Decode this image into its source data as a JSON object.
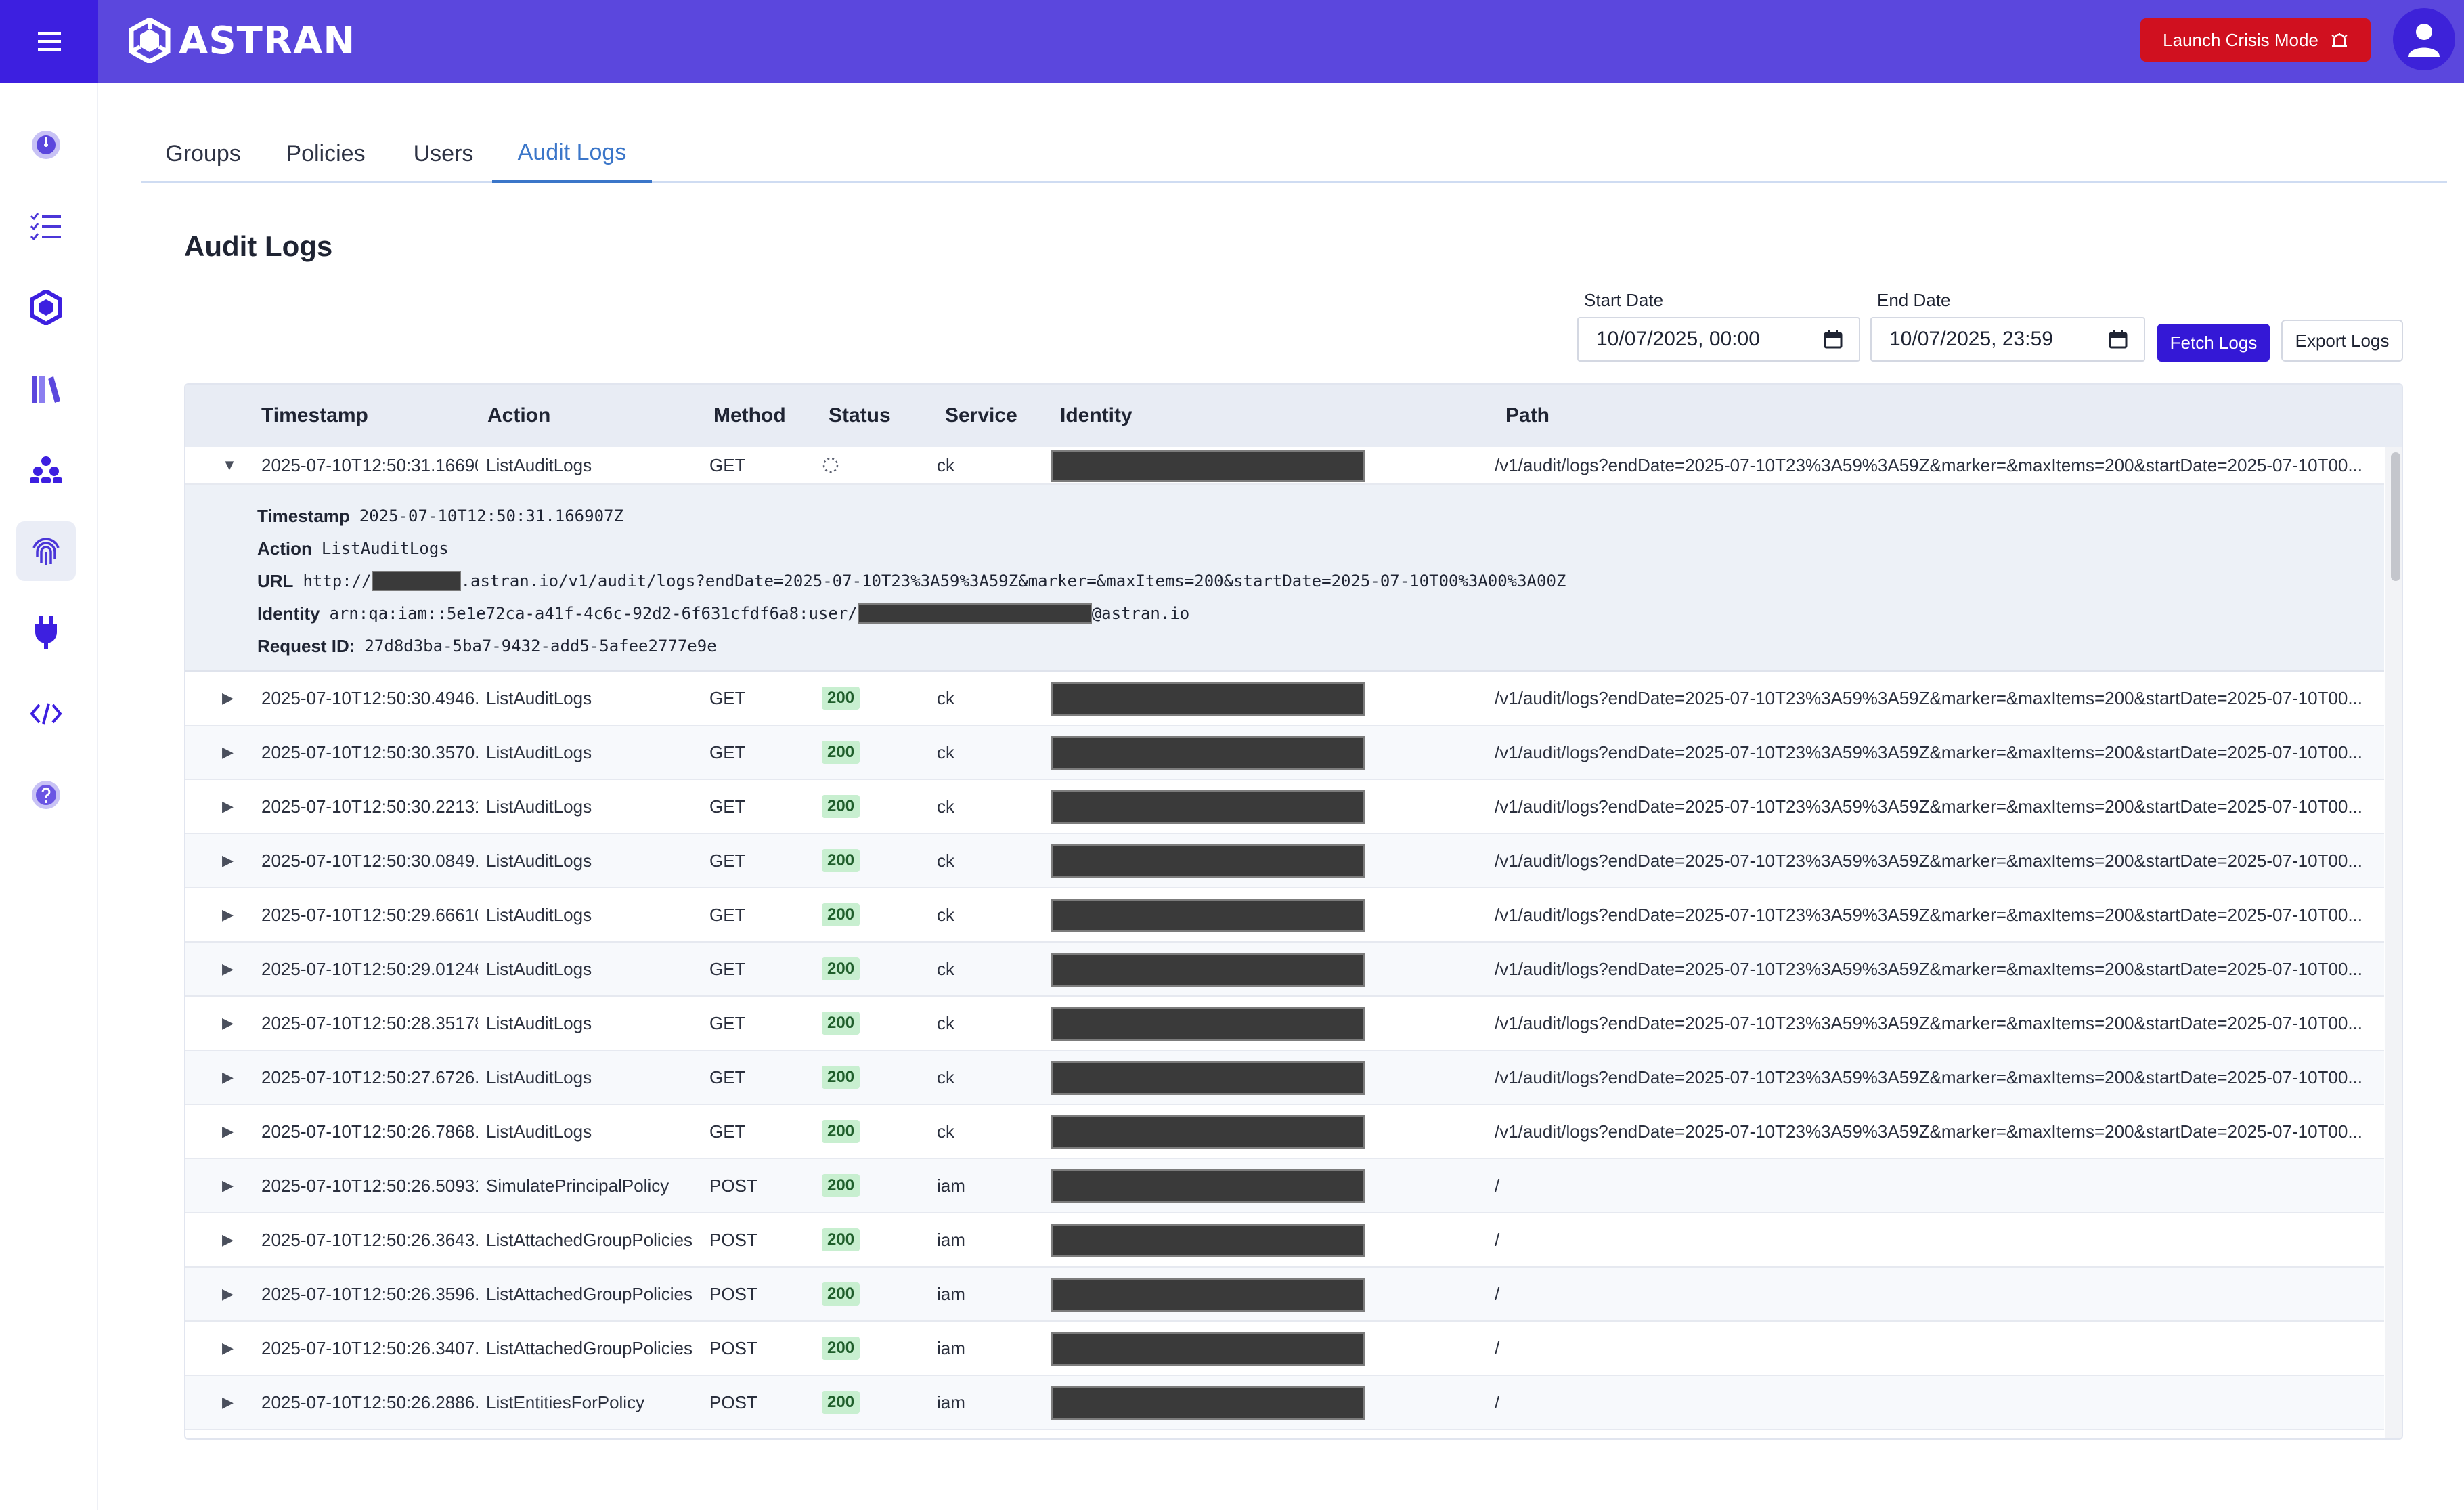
{
  "app": {
    "logo_text": "ASTRAN",
    "crisis_button": "Launch Crisis Mode"
  },
  "sidebar": {
    "items": [
      {
        "icon": "dashboard-gauge-icon"
      },
      {
        "icon": "checklist-icon"
      },
      {
        "icon": "hexagon-network-icon"
      },
      {
        "icon": "library-books-icon"
      },
      {
        "icon": "org-hierarchy-icon"
      },
      {
        "icon": "fingerprint-icon",
        "active": true
      },
      {
        "icon": "plug-icon"
      },
      {
        "icon": "code-icon"
      },
      {
        "icon": "help-icon"
      }
    ]
  },
  "tabs": [
    "Groups",
    "Policies",
    "Users",
    "Audit Logs"
  ],
  "active_tab": "Audit Logs",
  "page_title": "Audit Logs",
  "filters": {
    "start_label": "Start Date",
    "start_value": "10/07/2025, 00:00",
    "end_label": "End Date",
    "end_value": "10/07/2025, 23:59",
    "fetch_label": "Fetch Logs",
    "export_label": "Export Logs"
  },
  "table": {
    "columns": [
      "Timestamp",
      "Action",
      "Method",
      "Status",
      "Service",
      "Identity",
      "Path"
    ],
    "expanded": {
      "timestamp": "2025-07-10T12:50:31.16690...",
      "action": "ListAuditLogs",
      "method": "GET",
      "service": "ck",
      "path": "/v1/audit/logs?endDate=2025-07-10T23%3A59%3A59Z&marker=&maxItems=200&startDate=2025-07-10T00...",
      "details": {
        "timestamp_key": "Timestamp",
        "timestamp_val": "2025-07-10T12:50:31.166907Z",
        "action_key": "Action",
        "action_val": "ListAuditLogs",
        "url_key": "URL",
        "url_prefix": "http://",
        "url_suffix": ".astran.io/v1/audit/logs?endDate=2025-07-10T23%3A59%3A59Z&marker=&maxItems=200&startDate=2025-07-10T00%3A00%3A00Z",
        "identity_key": "Identity",
        "identity_prefix": "arn:qa:iam::5e1e72ca-a41f-4c6c-92d2-6f631cfdf6a8:user/",
        "identity_suffix": "@astran.io",
        "request_key": "Request ID:",
        "request_val": "27d8d3ba-5ba7-9432-add5-5afee2777e9e"
      }
    },
    "rows": [
      {
        "timestamp": "2025-07-10T12:50:30.4946...",
        "action": "ListAuditLogs",
        "method": "GET",
        "status": "200",
        "service": "ck",
        "path": "/v1/audit/logs?endDate=2025-07-10T23%3A59%3A59Z&marker=&maxItems=200&startDate=2025-07-10T00..."
      },
      {
        "timestamp": "2025-07-10T12:50:30.3570...",
        "action": "ListAuditLogs",
        "method": "GET",
        "status": "200",
        "service": "ck",
        "path": "/v1/audit/logs?endDate=2025-07-10T23%3A59%3A59Z&marker=&maxItems=200&startDate=2025-07-10T00..."
      },
      {
        "timestamp": "2025-07-10T12:50:30.22131...",
        "action": "ListAuditLogs",
        "method": "GET",
        "status": "200",
        "service": "ck",
        "path": "/v1/audit/logs?endDate=2025-07-10T23%3A59%3A59Z&marker=&maxItems=200&startDate=2025-07-10T00..."
      },
      {
        "timestamp": "2025-07-10T12:50:30.0849...",
        "action": "ListAuditLogs",
        "method": "GET",
        "status": "200",
        "service": "ck",
        "path": "/v1/audit/logs?endDate=2025-07-10T23%3A59%3A59Z&marker=&maxItems=200&startDate=2025-07-10T00..."
      },
      {
        "timestamp": "2025-07-10T12:50:29.66610...",
        "action": "ListAuditLogs",
        "method": "GET",
        "status": "200",
        "service": "ck",
        "path": "/v1/audit/logs?endDate=2025-07-10T23%3A59%3A59Z&marker=&maxItems=200&startDate=2025-07-10T00..."
      },
      {
        "timestamp": "2025-07-10T12:50:29.01246...",
        "action": "ListAuditLogs",
        "method": "GET",
        "status": "200",
        "service": "ck",
        "path": "/v1/audit/logs?endDate=2025-07-10T23%3A59%3A59Z&marker=&maxItems=200&startDate=2025-07-10T00..."
      },
      {
        "timestamp": "2025-07-10T12:50:28.35178...",
        "action": "ListAuditLogs",
        "method": "GET",
        "status": "200",
        "service": "ck",
        "path": "/v1/audit/logs?endDate=2025-07-10T23%3A59%3A59Z&marker=&maxItems=200&startDate=2025-07-10T00..."
      },
      {
        "timestamp": "2025-07-10T12:50:27.6726...",
        "action": "ListAuditLogs",
        "method": "GET",
        "status": "200",
        "service": "ck",
        "path": "/v1/audit/logs?endDate=2025-07-10T23%3A59%3A59Z&marker=&maxItems=200&startDate=2025-07-10T00..."
      },
      {
        "timestamp": "2025-07-10T12:50:26.7868...",
        "action": "ListAuditLogs",
        "method": "GET",
        "status": "200",
        "service": "ck",
        "path": "/v1/audit/logs?endDate=2025-07-10T23%3A59%3A59Z&marker=&maxItems=200&startDate=2025-07-10T00..."
      },
      {
        "timestamp": "2025-07-10T12:50:26.50931...",
        "action": "SimulatePrincipalPolicy",
        "method": "POST",
        "status": "200",
        "service": "iam",
        "path": "/"
      },
      {
        "timestamp": "2025-07-10T12:50:26.3643...",
        "action": "ListAttachedGroupPolicies",
        "method": "POST",
        "status": "200",
        "service": "iam",
        "path": "/"
      },
      {
        "timestamp": "2025-07-10T12:50:26.3596...",
        "action": "ListAttachedGroupPolicies",
        "method": "POST",
        "status": "200",
        "service": "iam",
        "path": "/"
      },
      {
        "timestamp": "2025-07-10T12:50:26.3407...",
        "action": "ListAttachedGroupPolicies",
        "method": "POST",
        "status": "200",
        "service": "iam",
        "path": "/"
      },
      {
        "timestamp": "2025-07-10T12:50:26.2886...",
        "action": "ListEntitiesForPolicy",
        "method": "POST",
        "status": "200",
        "service": "iam",
        "path": "/"
      }
    ]
  },
  "colors": {
    "brand": "#5b47dd",
    "brand_dark": "#3d1fe0",
    "crisis": "#d0101f",
    "link": "#3b76c9",
    "status_ok_bg": "#c8efd0"
  }
}
